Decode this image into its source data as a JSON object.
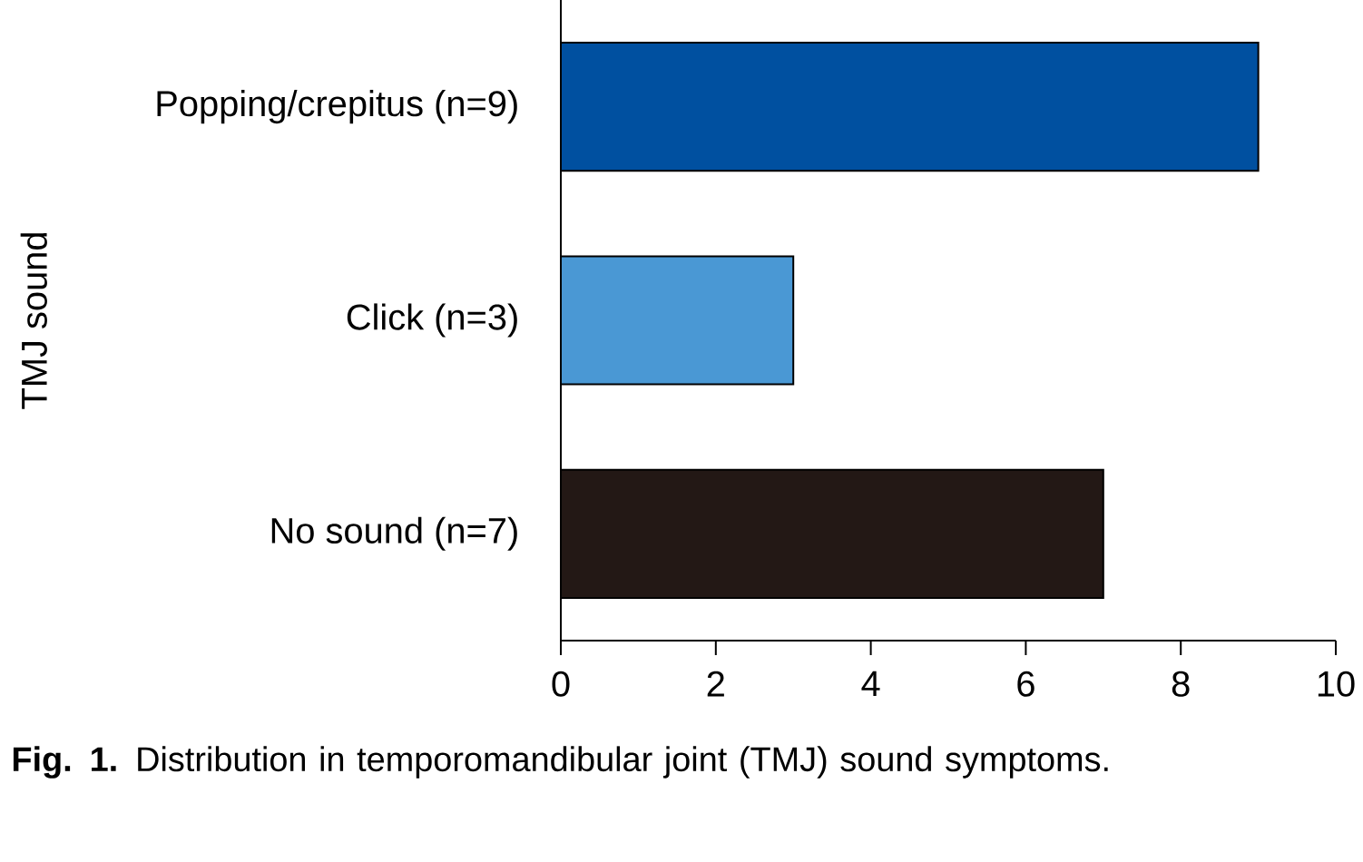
{
  "chart_data": {
    "type": "bar",
    "orientation": "horizontal",
    "ylabel": "TMJ sound",
    "categories": [
      "Popping/crepitus (n=9)",
      "Click (n=3)",
      "No sound (n=7)"
    ],
    "values": [
      9,
      3,
      7
    ],
    "colors": [
      "#0050a0",
      "#4a98d4",
      "#231815"
    ],
    "xlim": [
      0,
      10
    ],
    "xticks": [
      0,
      2,
      4,
      6,
      8,
      10
    ],
    "grid": false,
    "annotations": [
      "**Fig. 1.** Distribution in temporomandibular joint (TMJ) sound symptoms."
    ]
  }
}
